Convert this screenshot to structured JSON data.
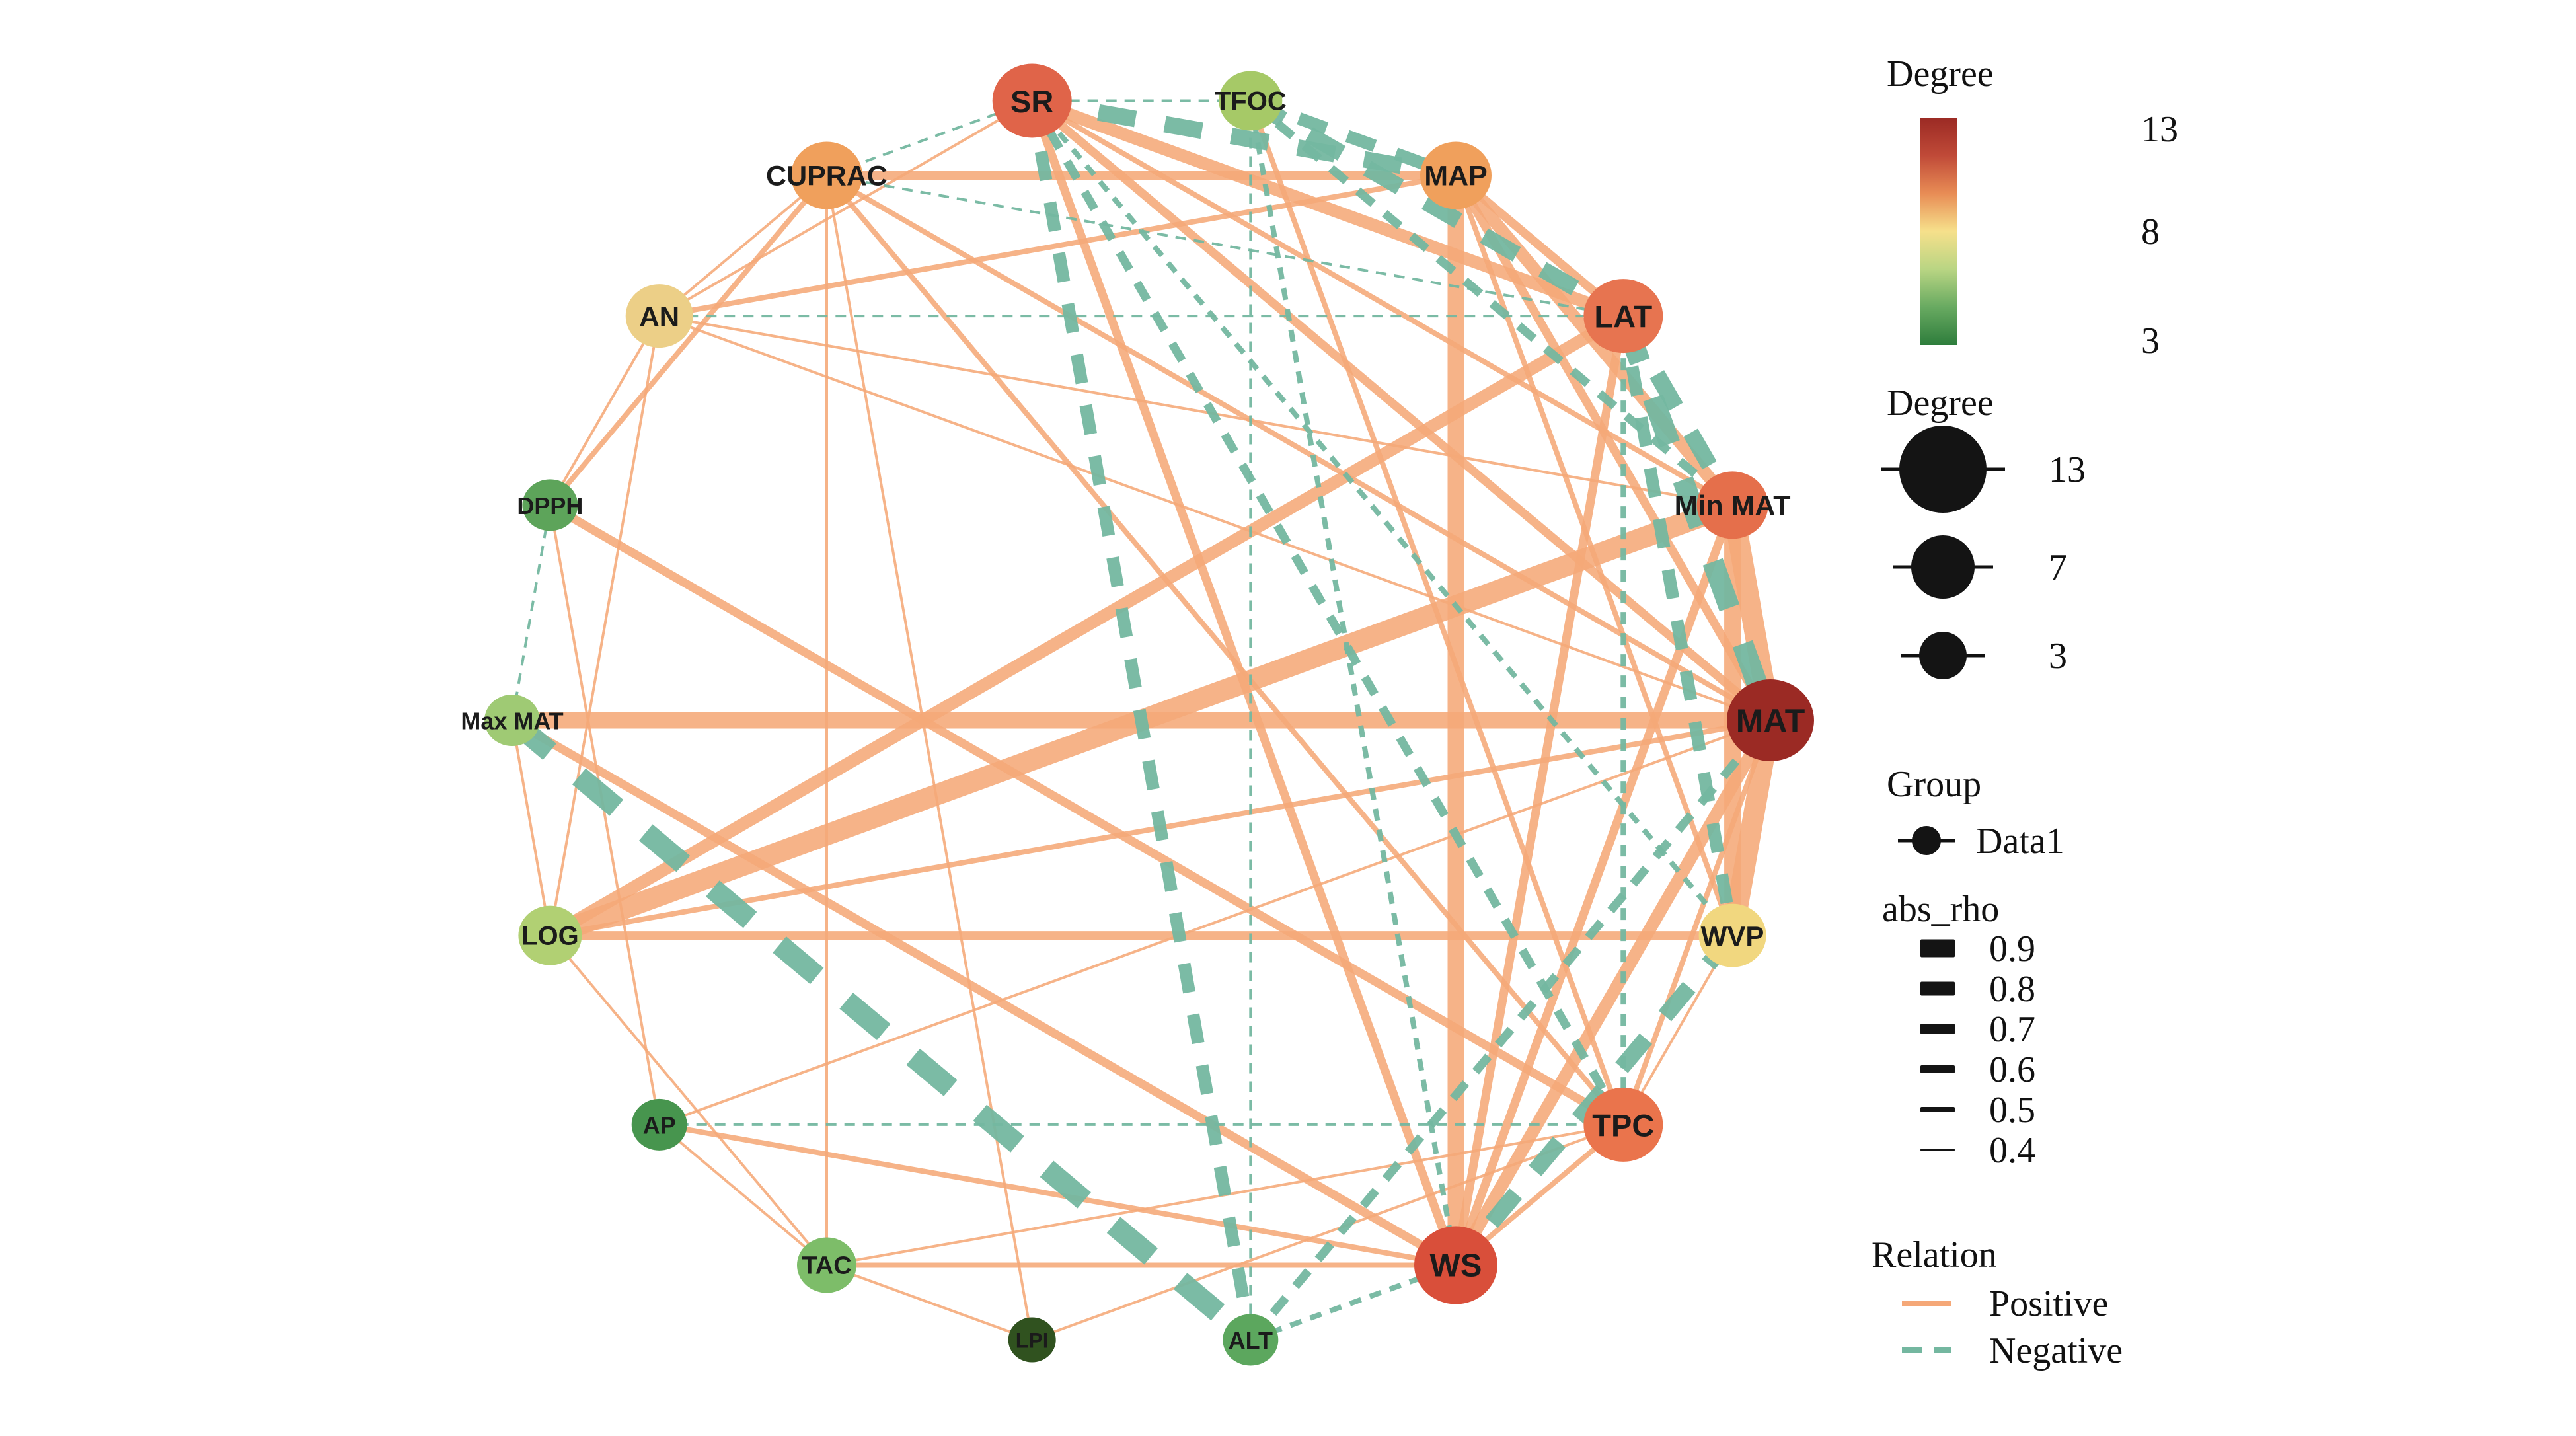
{
  "figure": {
    "background": "#ffffff",
    "kind": "circular correlation network"
  },
  "chart_data": {
    "type": "network",
    "layout": "circular",
    "group": "Data1",
    "node_degree_range": [
      3,
      13
    ],
    "edge_colors": {
      "positive": "#f5a878",
      "negative": "#74b7a0"
    },
    "node_color_scale": [
      {
        "value": 3,
        "color": "#2e7d3c"
      },
      {
        "value": 8,
        "color": "#f6e08b"
      },
      {
        "value": 13,
        "color": "#9b2a24"
      }
    ],
    "nodes": [
      {
        "id": "SR",
        "label": "SR",
        "degree": 11,
        "color": "#e06449"
      },
      {
        "id": "TFOC",
        "label": "TFOC",
        "degree": 7,
        "color": "#a6c967"
      },
      {
        "id": "MAP",
        "label": "MAP",
        "degree": 9,
        "color": "#f0a05c"
      },
      {
        "id": "LAT",
        "label": "LAT",
        "degree": 11,
        "color": "#e77450"
      },
      {
        "id": "MinMAT",
        "label": "Min MAT",
        "degree": 9,
        "color": "#e56f4b"
      },
      {
        "id": "MAT",
        "label": "MAT",
        "degree": 13,
        "color": "#9b2a24"
      },
      {
        "id": "WVP",
        "label": "WVP",
        "degree": 8,
        "color": "#f1d77f"
      },
      {
        "id": "TPC",
        "label": "TPC",
        "degree": 11,
        "color": "#ea744c"
      },
      {
        "id": "WS",
        "label": "WS",
        "degree": 12,
        "color": "#d94f3a"
      },
      {
        "id": "ALT",
        "label": "ALT",
        "degree": 5,
        "color": "#5ca75e"
      },
      {
        "id": "LPI",
        "label": "LPI",
        "degree": 3,
        "color": "#30521f"
      },
      {
        "id": "TAC",
        "label": "TAC",
        "degree": 6,
        "color": "#7dbd69"
      },
      {
        "id": "AP",
        "label": "AP",
        "degree": 5,
        "color": "#47954e"
      },
      {
        "id": "LOG",
        "label": "LOG",
        "degree": 7,
        "color": "#b1d073"
      },
      {
        "id": "MaxMAT",
        "label": "Max MAT",
        "degree": 5,
        "color": "#9fca74"
      },
      {
        "id": "DPPH",
        "label": "DPPH",
        "degree": 5,
        "color": "#5da45a"
      },
      {
        "id": "AN",
        "label": "AN",
        "degree": 8,
        "color": "#eccf87"
      },
      {
        "id": "CUPRAC",
        "label": "CUPRAC",
        "degree": 9,
        "color": "#f0a05c"
      }
    ],
    "edges": [
      {
        "source": "CUPRAC",
        "target": "MAP",
        "relation": "positive",
        "abs_rho": 0.6
      },
      {
        "source": "CUPRAC",
        "target": "AN",
        "relation": "positive",
        "abs_rho": 0.4
      },
      {
        "source": "CUPRAC",
        "target": "DPPH",
        "relation": "positive",
        "abs_rho": 0.5
      },
      {
        "source": "CUPRAC",
        "target": "TPC",
        "relation": "positive",
        "abs_rho": 0.5
      },
      {
        "source": "CUPRAC",
        "target": "LPI",
        "relation": "positive",
        "abs_rho": 0.4
      },
      {
        "source": "CUPRAC",
        "target": "MAT",
        "relation": "positive",
        "abs_rho": 0.5
      },
      {
        "source": "CUPRAC",
        "target": "TAC",
        "relation": "positive",
        "abs_rho": 0.4
      },
      {
        "source": "SR",
        "target": "LAT",
        "relation": "positive",
        "abs_rho": 0.7
      },
      {
        "source": "SR",
        "target": "MAT",
        "relation": "positive",
        "abs_rho": 0.6
      },
      {
        "source": "SR",
        "target": "MinMAT",
        "relation": "positive",
        "abs_rho": 0.5
      },
      {
        "source": "SR",
        "target": "WS",
        "relation": "positive",
        "abs_rho": 0.6
      },
      {
        "source": "SR",
        "target": "AN",
        "relation": "positive",
        "abs_rho": 0.4
      },
      {
        "source": "TFOC",
        "target": "TPC",
        "relation": "positive",
        "abs_rho": 0.5
      },
      {
        "source": "MAP",
        "target": "WS",
        "relation": "positive",
        "abs_rho": 0.8
      },
      {
        "source": "MAP",
        "target": "MAT",
        "relation": "positive",
        "abs_rho": 0.6
      },
      {
        "source": "MAP",
        "target": "MinMAT",
        "relation": "positive",
        "abs_rho": 0.7
      },
      {
        "source": "MAP",
        "target": "WVP",
        "relation": "positive",
        "abs_rho": 0.5
      },
      {
        "source": "MAP",
        "target": "LAT",
        "relation": "positive",
        "abs_rho": 0.6
      },
      {
        "source": "MAP",
        "target": "AN",
        "relation": "positive",
        "abs_rho": 0.5
      },
      {
        "source": "LAT",
        "target": "LOG",
        "relation": "positive",
        "abs_rho": 0.7
      },
      {
        "source": "LAT",
        "target": "WS",
        "relation": "positive",
        "abs_rho": 0.6
      },
      {
        "source": "MinMAT",
        "target": "MAT",
        "relation": "positive",
        "abs_rho": 0.9
      },
      {
        "source": "MinMAT",
        "target": "WVP",
        "relation": "positive",
        "abs_rho": 0.8
      },
      {
        "source": "MinMAT",
        "target": "LOG",
        "relation": "positive",
        "abs_rho": 0.9
      },
      {
        "source": "MinMAT",
        "target": "WS",
        "relation": "positive",
        "abs_rho": 0.6
      },
      {
        "source": "MinMAT",
        "target": "AN",
        "relation": "positive",
        "abs_rho": 0.4
      },
      {
        "source": "MAT",
        "target": "WVP",
        "relation": "positive",
        "abs_rho": 0.9
      },
      {
        "source": "MAT",
        "target": "MaxMAT",
        "relation": "positive",
        "abs_rho": 0.8
      },
      {
        "source": "MAT",
        "target": "LOG",
        "relation": "positive",
        "abs_rho": 0.5
      },
      {
        "source": "MAT",
        "target": "WS",
        "relation": "positive",
        "abs_rho": 0.7
      },
      {
        "source": "MAT",
        "target": "AN",
        "relation": "positive",
        "abs_rho": 0.4
      },
      {
        "source": "MAT",
        "target": "AP",
        "relation": "positive",
        "abs_rho": 0.4
      },
      {
        "source": "MAT",
        "target": "TPC",
        "relation": "positive",
        "abs_rho": 0.5
      },
      {
        "source": "WVP",
        "target": "LOG",
        "relation": "positive",
        "abs_rho": 0.6
      },
      {
        "source": "WVP",
        "target": "TPC",
        "relation": "positive",
        "abs_rho": 0.4
      },
      {
        "source": "TPC",
        "target": "TAC",
        "relation": "positive",
        "abs_rho": 0.4
      },
      {
        "source": "TPC",
        "target": "DPPH",
        "relation": "positive",
        "abs_rho": 0.6
      },
      {
        "source": "TPC",
        "target": "LPI",
        "relation": "positive",
        "abs_rho": 0.4
      },
      {
        "source": "TPC",
        "target": "WS",
        "relation": "positive",
        "abs_rho": 0.5
      },
      {
        "source": "WS",
        "target": "TAC",
        "relation": "positive",
        "abs_rho": 0.5
      },
      {
        "source": "WS",
        "target": "AP",
        "relation": "positive",
        "abs_rho": 0.5
      },
      {
        "source": "WS",
        "target": "MaxMAT",
        "relation": "positive",
        "abs_rho": 0.6
      },
      {
        "source": "TAC",
        "target": "LPI",
        "relation": "positive",
        "abs_rho": 0.4
      },
      {
        "source": "TAC",
        "target": "AP",
        "relation": "positive",
        "abs_rho": 0.4
      },
      {
        "source": "TAC",
        "target": "LOG",
        "relation": "positive",
        "abs_rho": 0.4
      },
      {
        "source": "LOG",
        "target": "AN",
        "relation": "positive",
        "abs_rho": 0.4
      },
      {
        "source": "LOG",
        "target": "MaxMAT",
        "relation": "positive",
        "abs_rho": 0.4
      },
      {
        "source": "DPPH",
        "target": "AN",
        "relation": "positive",
        "abs_rho": 0.4
      },
      {
        "source": "DPPH",
        "target": "AP",
        "relation": "positive",
        "abs_rho": 0.4
      },
      {
        "source": "SR",
        "target": "TFOC",
        "relation": "negative",
        "abs_rho": 0.4
      },
      {
        "source": "SR",
        "target": "MAP",
        "relation": "negative",
        "abs_rho": 0.8
      },
      {
        "source": "SR",
        "target": "ALT",
        "relation": "negative",
        "abs_rho": 0.7
      },
      {
        "source": "SR",
        "target": "TPC",
        "relation": "negative",
        "abs_rho": 0.6
      },
      {
        "source": "SR",
        "target": "WVP",
        "relation": "negative",
        "abs_rho": 0.5
      },
      {
        "source": "SR",
        "target": "CUPRAC",
        "relation": "negative",
        "abs_rho": 0.4
      },
      {
        "source": "TFOC",
        "target": "MAP",
        "relation": "negative",
        "abs_rho": 0.7
      },
      {
        "source": "TFOC",
        "target": "LAT",
        "relation": "negative",
        "abs_rho": 0.8
      },
      {
        "source": "TFOC",
        "target": "MinMAT",
        "relation": "negative",
        "abs_rho": 0.6
      },
      {
        "source": "TFOC",
        "target": "ALT",
        "relation": "negative",
        "abs_rho": 0.4
      },
      {
        "source": "TFOC",
        "target": "WS",
        "relation": "negative",
        "abs_rho": 0.5
      },
      {
        "source": "LAT",
        "target": "MAT",
        "relation": "negative",
        "abs_rho": 0.9
      },
      {
        "source": "LAT",
        "target": "MinMAT",
        "relation": "negative",
        "abs_rho": 0.8
      },
      {
        "source": "LAT",
        "target": "WVP",
        "relation": "negative",
        "abs_rho": 0.7
      },
      {
        "source": "LAT",
        "target": "TPC",
        "relation": "negative",
        "abs_rho": 0.5
      },
      {
        "source": "LAT",
        "target": "CUPRAC",
        "relation": "negative",
        "abs_rho": 0.4
      },
      {
        "source": "LAT",
        "target": "AN",
        "relation": "negative",
        "abs_rho": 0.4
      },
      {
        "source": "MaxMAT",
        "target": "ALT",
        "relation": "negative",
        "abs_rho": 0.9
      },
      {
        "source": "MaxMAT",
        "target": "DPPH",
        "relation": "negative",
        "abs_rho": 0.4
      },
      {
        "source": "WVP",
        "target": "WS",
        "relation": "negative",
        "abs_rho": 0.8
      },
      {
        "source": "ALT",
        "target": "WS",
        "relation": "negative",
        "abs_rho": 0.5
      },
      {
        "source": "ALT",
        "target": "MAT",
        "relation": "negative",
        "abs_rho": 0.6
      },
      {
        "source": "AP",
        "target": "TPC",
        "relation": "negative",
        "abs_rho": 0.4
      }
    ]
  },
  "legend": {
    "gradient": {
      "title": "Degree",
      "ticks": [
        "13",
        "8",
        "3"
      ],
      "stops": [
        "#9b2a24",
        "#c04a38",
        "#e88c55",
        "#f6e08b",
        "#b9d583",
        "#68aa61",
        "#2e7d3c"
      ]
    },
    "size": {
      "title": "Degree",
      "items": [
        {
          "label": "13",
          "value": 13
        },
        {
          "label": "7",
          "value": 7
        },
        {
          "label": "3",
          "value": 3
        }
      ]
    },
    "group": {
      "title": "Group",
      "items": [
        {
          "label": "Data1"
        }
      ]
    },
    "abs_rho": {
      "title": "abs_rho",
      "items": [
        "0.9",
        "0.8",
        "0.7",
        "0.6",
        "0.5",
        "0.4"
      ]
    },
    "relation": {
      "title": "Relation",
      "items": [
        {
          "label": "Positive",
          "style": "solid",
          "color": "#f5a878"
        },
        {
          "label": "Negative",
          "style": "dashed",
          "color": "#74b7a0"
        }
      ]
    }
  }
}
